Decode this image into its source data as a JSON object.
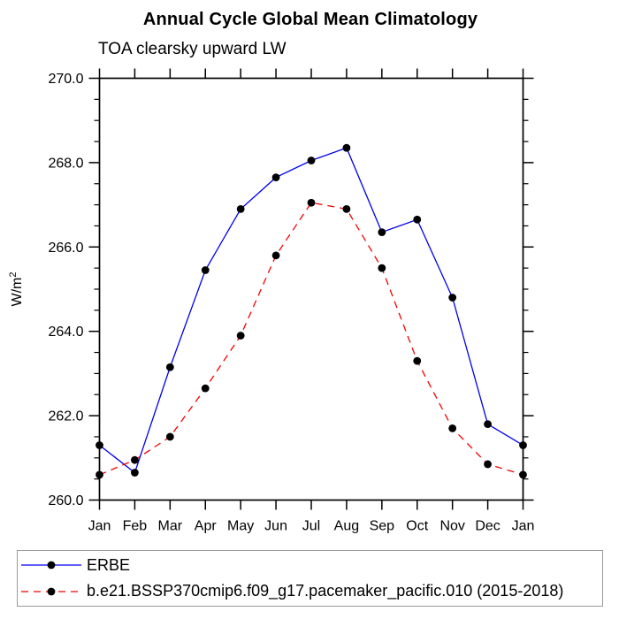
{
  "page": {
    "background_color": "#ffffff",
    "text_color": "#000000"
  },
  "chart_data": {
    "type": "line",
    "title": "Annual Cycle Global Mean Climatology",
    "subtitle": "TOA clearsky upward LW",
    "ylabel_base": "W/m",
    "ylabel_exponent": "2",
    "x_tick_labels": [
      "Jan",
      "Feb",
      "Mar",
      "Apr",
      "May",
      "Jun",
      "Jul",
      "Aug",
      "Sep",
      "Oct",
      "Nov",
      "Dec",
      "Jan"
    ],
    "ylim": [
      260.0,
      270.0
    ],
    "y_major_ticks": [
      260.0,
      262.0,
      264.0,
      266.0,
      268.0,
      270.0
    ],
    "y_minor_step": 0.5,
    "y_tick_label_format_decimals": 1,
    "grid": false,
    "axis_color": "#000000",
    "marker_shape": "filled-circle",
    "legend_position": "bottom",
    "legend_border_color": "#999999",
    "series": [
      {
        "name": "ERBE",
        "color": "#0000f0",
        "line_style": "solid",
        "marker_color": "#000000",
        "values": [
          261.3,
          260.65,
          263.15,
          265.45,
          266.9,
          267.65,
          268.05,
          268.35,
          266.35,
          266.65,
          264.8,
          261.8,
          261.3
        ]
      },
      {
        "name": "b.e21.BSSP370cmip6.f09_g17.pacemaker_pacific.010 (2015-2018)",
        "color": "#f40000",
        "line_style": "dashed",
        "marker_color": "#000000",
        "values": [
          260.6,
          260.95,
          261.5,
          262.65,
          263.9,
          265.8,
          267.05,
          266.9,
          265.5,
          263.3,
          261.7,
          260.85,
          260.6
        ]
      }
    ]
  }
}
